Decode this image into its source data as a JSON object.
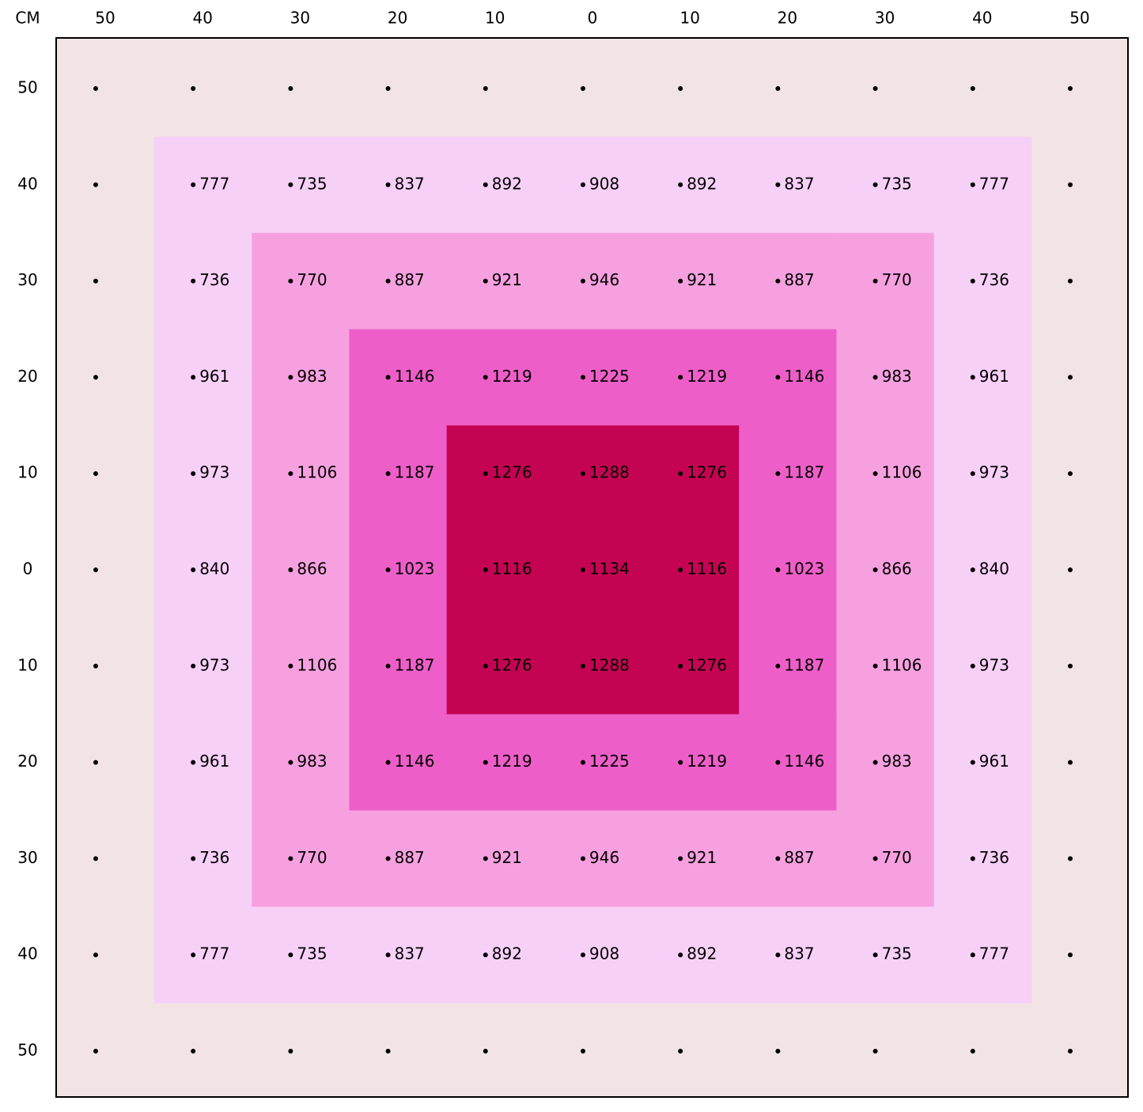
{
  "corner_label": "CM",
  "columns": [
    50,
    40,
    30,
    20,
    10,
    0,
    10,
    20,
    30,
    40,
    50
  ],
  "rows": [
    50,
    40,
    30,
    20,
    10,
    0,
    10,
    20,
    30,
    40,
    50
  ],
  "cells": [
    [
      null,
      null,
      null,
      null,
      null,
      null,
      null,
      null,
      null,
      null,
      null
    ],
    [
      null,
      777,
      735,
      837,
      892,
      908,
      892,
      837,
      735,
      777,
      null
    ],
    [
      null,
      736,
      770,
      887,
      921,
      946,
      921,
      887,
      770,
      736,
      null
    ],
    [
      null,
      961,
      983,
      1146,
      1219,
      1225,
      1219,
      1146,
      983,
      961,
      null
    ],
    [
      null,
      973,
      1106,
      1187,
      1276,
      1288,
      1276,
      1187,
      1106,
      973,
      null
    ],
    [
      null,
      840,
      866,
      1023,
      1116,
      1134,
      1116,
      1023,
      866,
      840,
      null
    ],
    [
      null,
      973,
      1106,
      1187,
      1276,
      1288,
      1276,
      1187,
      1106,
      973,
      null
    ],
    [
      null,
      961,
      983,
      1146,
      1219,
      1225,
      1219,
      1146,
      983,
      961,
      null
    ],
    [
      null,
      736,
      770,
      887,
      921,
      946,
      921,
      887,
      770,
      736,
      null
    ],
    [
      null,
      777,
      735,
      837,
      892,
      908,
      892,
      837,
      735,
      777,
      null
    ],
    [
      null,
      null,
      null,
      null,
      null,
      null,
      null,
      null,
      null,
      null,
      null
    ]
  ],
  "ring_colors": [
    "#f2e4e4",
    "#f7d0f7",
    "#f7a0e0",
    "#ee5ec8",
    "#c40452"
  ]
}
